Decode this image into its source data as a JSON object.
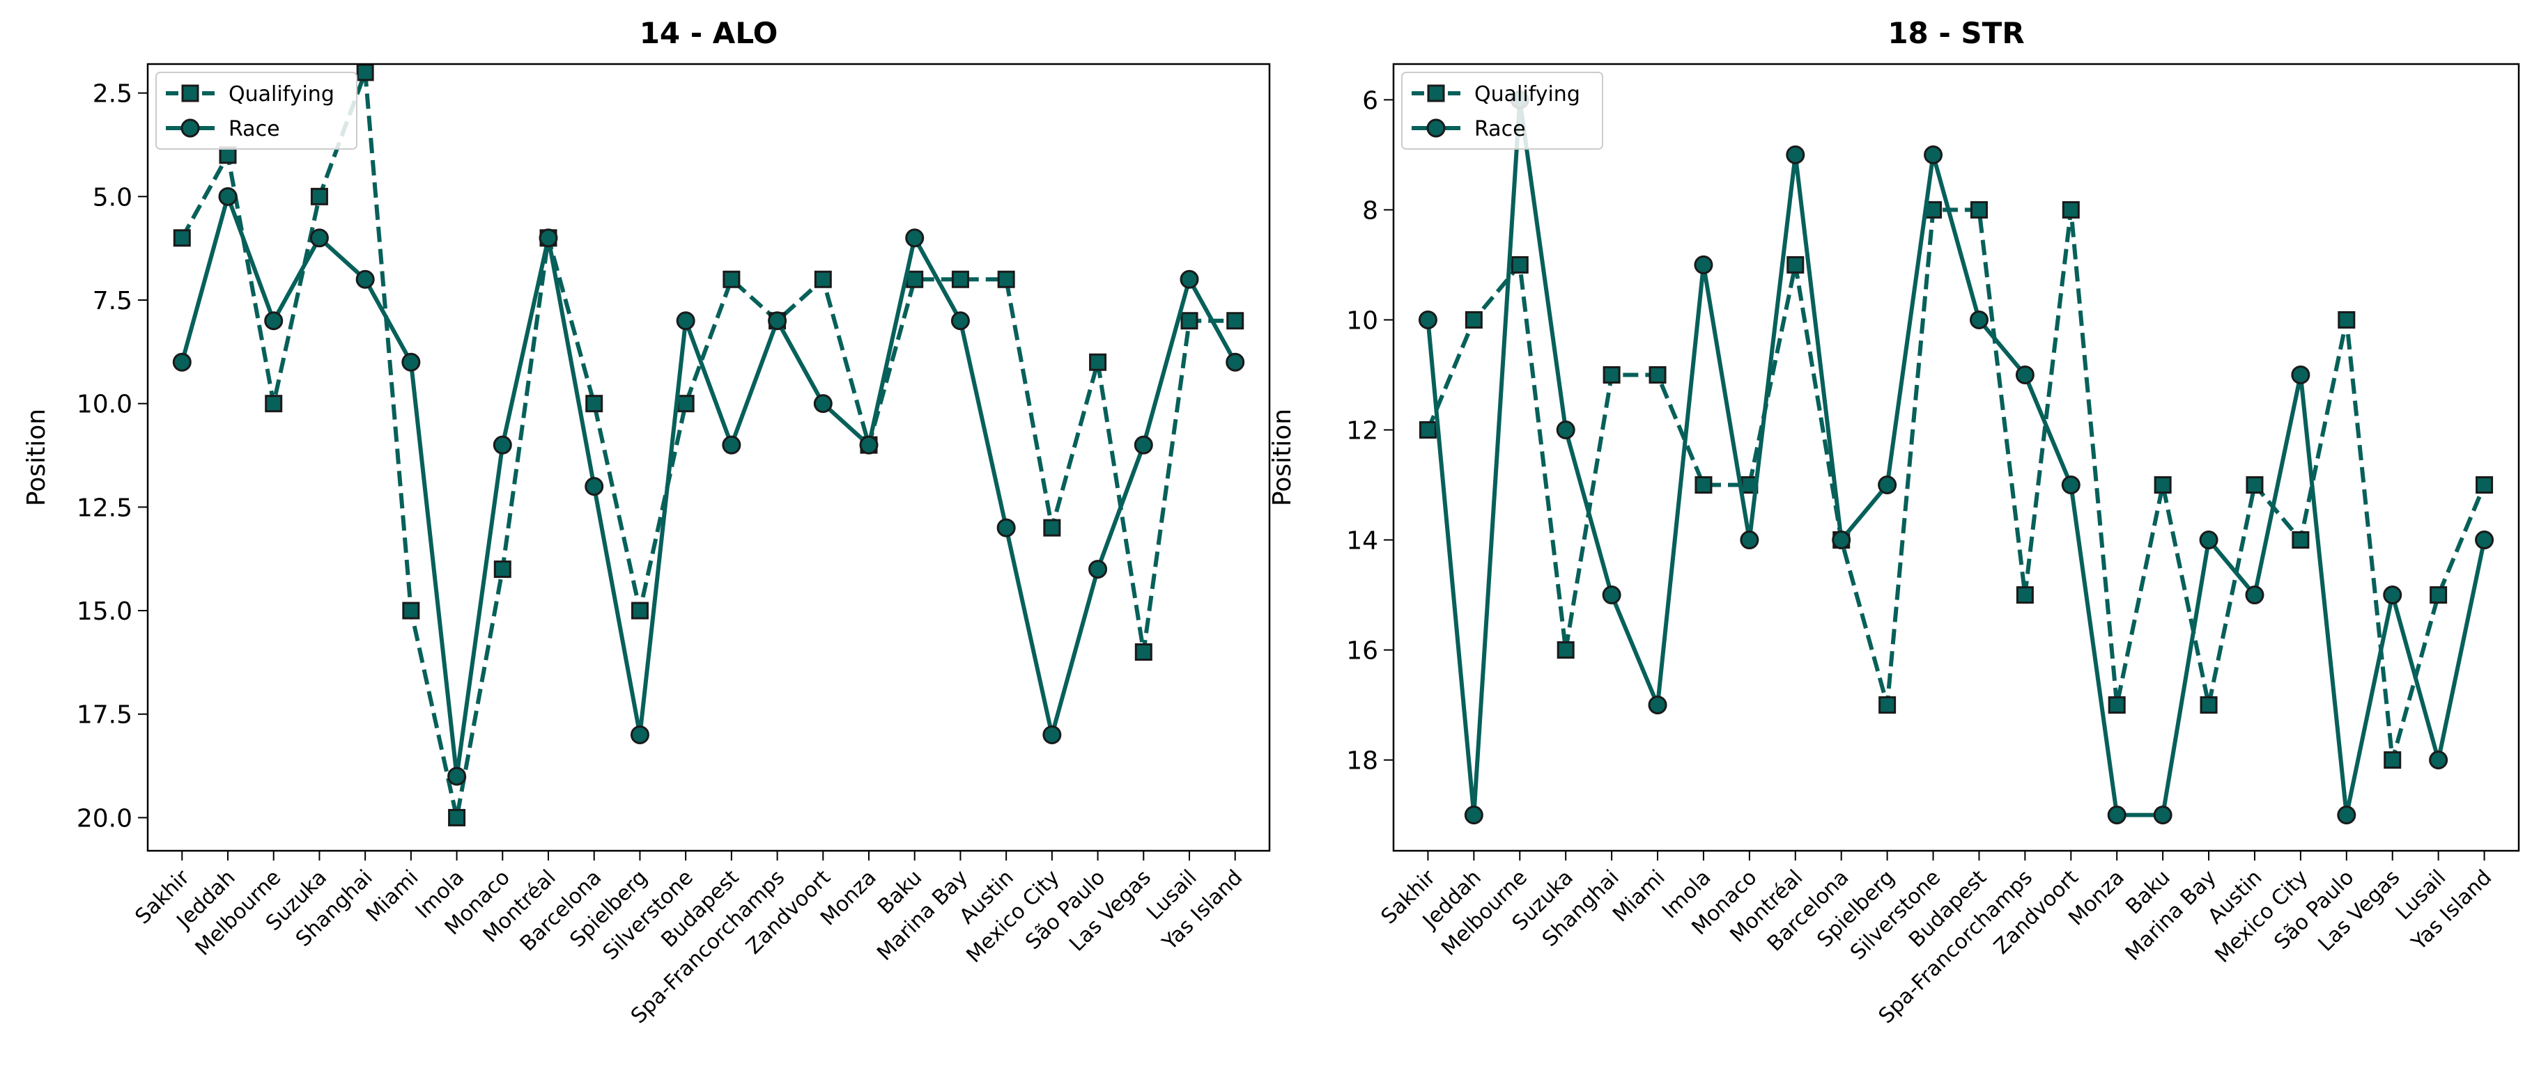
{
  "figure": {
    "colors": {
      "series": "#07605a",
      "marker_edge": "#1a1a1a",
      "axes": "#000000",
      "legend_border": "#cccccc"
    }
  },
  "chart_data": [
    {
      "type": "line",
      "title": "14 - ALO",
      "xlabel": "",
      "ylabel": "Position",
      "ylim": [
        20.8,
        1.8
      ],
      "y_inverted": true,
      "yticks": [
        "2.5",
        "5.0",
        "7.5",
        "10.0",
        "12.5",
        "15.0",
        "17.5",
        "20.0"
      ],
      "ytick_values": [
        2.5,
        5.0,
        7.5,
        10.0,
        12.5,
        15.0,
        17.5,
        20.0
      ],
      "grid": false,
      "legend_placement": "upper-left",
      "categories": [
        "Sakhir",
        "Jeddah",
        "Melbourne",
        "Suzuka",
        "Shanghai",
        "Miami",
        "Imola",
        "Monaco",
        "Montréal",
        "Barcelona",
        "Spielberg",
        "Silverstone",
        "Budapest",
        "Spa-Francorchamps",
        "Zandvoort",
        "Monza",
        "Baku",
        "Marina Bay",
        "Austin",
        "Mexico City",
        "São Paulo",
        "Las Vegas",
        "Lusail",
        "Yas Island"
      ],
      "series": [
        {
          "name": "Qualifying",
          "style": "dashed",
          "marker": "square",
          "values": [
            6,
            4,
            10,
            5,
            2,
            15,
            20,
            14,
            6,
            10,
            15,
            10,
            7,
            8,
            7,
            11,
            7,
            7,
            7,
            13,
            9,
            16,
            8,
            8
          ]
        },
        {
          "name": "Race",
          "style": "solid",
          "marker": "circle",
          "values": [
            9,
            5,
            8,
            6,
            7,
            9,
            19,
            11,
            6,
            12,
            18,
            8,
            11,
            8,
            10,
            11,
            6,
            8,
            13,
            18,
            14,
            11,
            7,
            9
          ]
        }
      ]
    },
    {
      "type": "line",
      "title": "18 - STR",
      "xlabel": "",
      "ylabel": "Position",
      "ylim": [
        19.65,
        5.35
      ],
      "y_inverted": true,
      "yticks": [
        "6",
        "8",
        "10",
        "12",
        "14",
        "16",
        "18"
      ],
      "ytick_values": [
        6,
        8,
        10,
        12,
        14,
        16,
        18
      ],
      "grid": false,
      "legend_placement": "upper-left",
      "categories": [
        "Sakhir",
        "Jeddah",
        "Melbourne",
        "Suzuka",
        "Shanghai",
        "Miami",
        "Imola",
        "Monaco",
        "Montréal",
        "Barcelona",
        "Spielberg",
        "Silverstone",
        "Budapest",
        "Spa-Francorchamps",
        "Zandvoort",
        "Monza",
        "Baku",
        "Marina Bay",
        "Austin",
        "Mexico City",
        "São Paulo",
        "Las Vegas",
        "Lusail",
        "Yas Island"
      ],
      "series": [
        {
          "name": "Qualifying",
          "style": "dashed",
          "marker": "square",
          "values": [
            12,
            10,
            9,
            16,
            11,
            11,
            13,
            13,
            9,
            14,
            17,
            8,
            8,
            15,
            8,
            17,
            13,
            17,
            13,
            14,
            10,
            18,
            15,
            13
          ]
        },
        {
          "name": "Race",
          "style": "solid",
          "marker": "circle",
          "values": [
            10,
            19,
            6,
            12,
            15,
            17,
            9,
            14,
            7,
            14,
            13,
            7,
            10,
            11,
            13,
            19,
            19,
            14,
            15,
            11,
            19,
            15,
            18,
            14
          ]
        }
      ]
    }
  ]
}
